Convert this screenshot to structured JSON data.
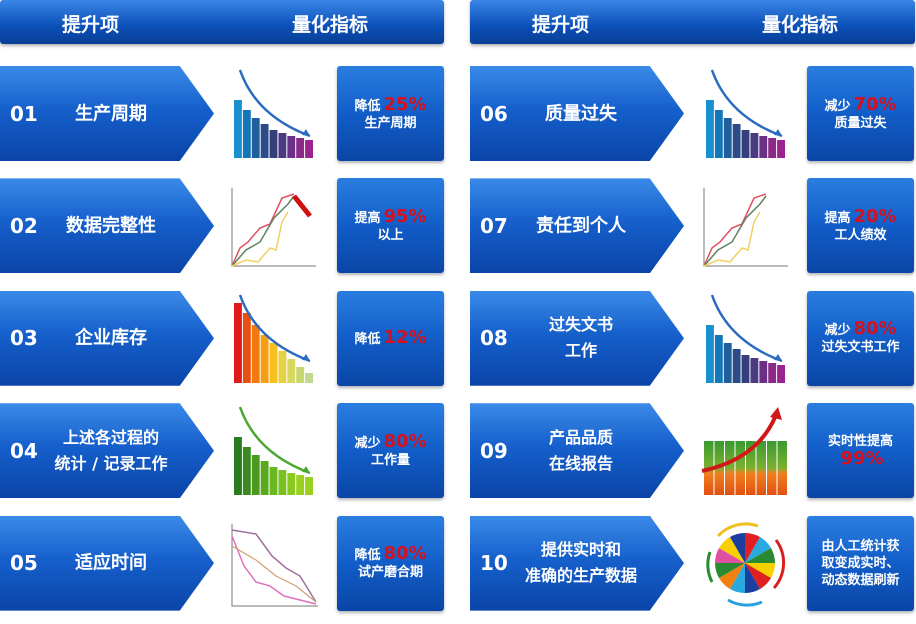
{
  "header": {
    "left": {
      "item": "提升项",
      "metric": "量化指标"
    },
    "right": {
      "item": "提升项",
      "metric": "量化指标"
    }
  },
  "rows": [
    {
      "num": "01",
      "title": [
        "生产周期"
      ],
      "icon": "bar-chart-decline-icon",
      "result": [
        [
          {
            "t": "降低"
          },
          {
            "t": "25%",
            "red": true
          }
        ],
        [
          {
            "t": "生产周期"
          }
        ]
      ]
    },
    {
      "num": "02",
      "title": [
        "数据完整性"
      ],
      "icon": "line-chart-rise-icon",
      "result": [
        [
          {
            "t": "提高"
          },
          {
            "t": "95%",
            "red": true
          }
        ],
        [
          {
            "t": "以上"
          }
        ]
      ]
    },
    {
      "num": "03",
      "title": [
        "企业库存"
      ],
      "icon": "bar-chart-decline-icon",
      "result": [
        [
          {
            "t": "降低"
          },
          {
            "t": "12%",
            "red": true
          }
        ]
      ]
    },
    {
      "num": "04",
      "title": [
        "上述各过程的",
        "统计 / 记录工作"
      ],
      "icon": "bar-chart-decline-icon",
      "result": [
        [
          {
            "t": "减少"
          },
          {
            "t": "80%",
            "red": true
          }
        ],
        [
          {
            "t": "工作量"
          }
        ]
      ]
    },
    {
      "num": "05",
      "title": [
        "适应时间"
      ],
      "icon": "line-chart-decline-icon",
      "result": [
        [
          {
            "t": "降低"
          },
          {
            "t": "80%",
            "red": true
          }
        ],
        [
          {
            "t": "试产磨合期"
          }
        ]
      ]
    },
    {
      "num": "06",
      "title": [
        "质量过失"
      ],
      "icon": "bar-chart-decline-icon",
      "result": [
        [
          {
            "t": "减少"
          },
          {
            "t": "70%",
            "red": true
          }
        ],
        [
          {
            "t": "质量过失"
          }
        ]
      ]
    },
    {
      "num": "07",
      "title": [
        "责任到个人"
      ],
      "icon": "line-chart-rise-icon",
      "result": [
        [
          {
            "t": "提高"
          },
          {
            "t": "20%",
            "red": true
          }
        ],
        [
          {
            "t": "工人绩效"
          }
        ]
      ]
    },
    {
      "num": "08",
      "title": [
        "过失文书",
        "工作"
      ],
      "icon": "bar-chart-decline-icon",
      "result": [
        [
          {
            "t": "减少"
          },
          {
            "t": "80%",
            "red": true
          }
        ],
        [
          {
            "t": "过失文书工作"
          }
        ]
      ]
    },
    {
      "num": "09",
      "title": [
        "产品品质",
        "在线报告"
      ],
      "icon": "bar-chart-growth-icon",
      "result": [
        [
          {
            "t": "实时性提高"
          }
        ],
        [
          {
            "t": "99%",
            "red": true
          }
        ]
      ]
    },
    {
      "num": "10",
      "title": [
        "提供实时和",
        "准确的生产数据"
      ],
      "icon": "pie-chart-cycle-icon",
      "result": [
        [
          {
            "t": "由人工统计获"
          }
        ],
        [
          {
            "t": "取变成实时、"
          }
        ],
        [
          {
            "t": "动态数据刷新"
          }
        ]
      ]
    }
  ],
  "colors": {
    "red": "#d8101c",
    "blue": "#0b4fb8"
  }
}
